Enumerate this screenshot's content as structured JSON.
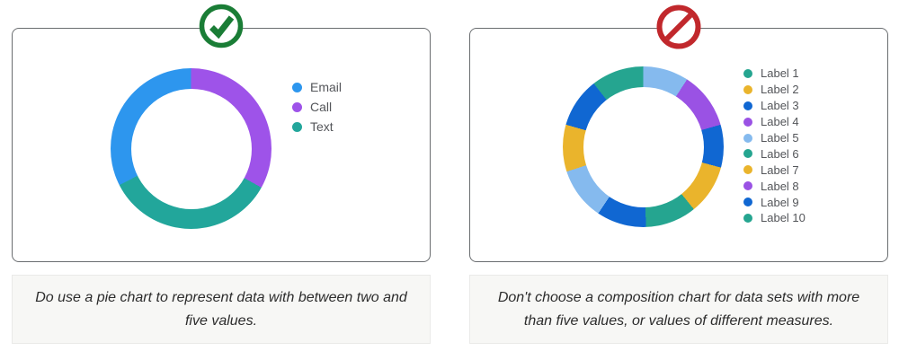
{
  "figure": {
    "background": "#ffffff",
    "panel_border_color": "#6a6d70",
    "caption_bg": "#f7f7f5",
    "caption_text_color": "#2c2c2c",
    "legend_text_color": "#54565a"
  },
  "panels": [
    {
      "verdict": "do",
      "icon": "check-circle-icon",
      "icon_color": "#1a7d36",
      "caption": "Do use a pie chart to represent data with between two and five values."
    },
    {
      "verdict": "dont",
      "icon": "no-sign-icon",
      "icon_color": "#c1282c",
      "caption": "Don't choose a composition chart for data sets with more than five values, or values of different measures."
    }
  ],
  "chart_data": [
    {
      "type": "pie",
      "variant": "donut",
      "legend_position": "right",
      "legend": [
        {
          "label": "Email",
          "color": "#2d96ee"
        },
        {
          "label": "Call",
          "color": "#9e53e9"
        },
        {
          "label": "Text",
          "color": "#22a69b"
        }
      ],
      "segments_clockwise_from_top": [
        {
          "label": "Call",
          "color": "#9e53e9",
          "deg": 119,
          "pct": 33.1
        },
        {
          "label": "Text",
          "color": "#22a69b",
          "deg": 124,
          "pct": 34.4
        },
        {
          "label": "Email",
          "color": "#2d96ee",
          "deg": 117,
          "pct": 32.5
        }
      ]
    },
    {
      "type": "pie",
      "variant": "donut",
      "legend_position": "right",
      "legend": [
        {
          "label": "Label 1",
          "color": "#25a590"
        },
        {
          "label": "Label 2",
          "color": "#eab42c"
        },
        {
          "label": "Label 3",
          "color": "#1067d2"
        },
        {
          "label": "Label 4",
          "color": "#9a52e4"
        },
        {
          "label": "Label 5",
          "color": "#85baee"
        },
        {
          "label": "Label 6",
          "color": "#25a590"
        },
        {
          "label": "Label 7",
          "color": "#eab42c"
        },
        {
          "label": "Label 8",
          "color": "#9a52e4"
        },
        {
          "label": "Label 9",
          "color": "#1067d2"
        },
        {
          "label": "Label 10",
          "color": "#25a590"
        }
      ],
      "segments_clockwise_from_top": [
        {
          "color": "#85baee",
          "deg": 33,
          "pct": 9.2
        },
        {
          "color": "#9a52e4",
          "deg": 41,
          "pct": 11.4
        },
        {
          "color": "#1067d2",
          "deg": 31,
          "pct": 8.6
        },
        {
          "color": "#eab42c",
          "deg": 36,
          "pct": 10.0
        },
        {
          "color": "#25a590",
          "deg": 37,
          "pct": 10.3
        },
        {
          "color": "#1067d2",
          "deg": 36,
          "pct": 10.0
        },
        {
          "color": "#85baee",
          "deg": 38,
          "pct": 10.6
        },
        {
          "color": "#eab42c",
          "deg": 34,
          "pct": 9.4
        },
        {
          "color": "#1067d2",
          "deg": 36,
          "pct": 10.0
        },
        {
          "color": "#25a590",
          "deg": 38,
          "pct": 10.6
        }
      ]
    }
  ]
}
